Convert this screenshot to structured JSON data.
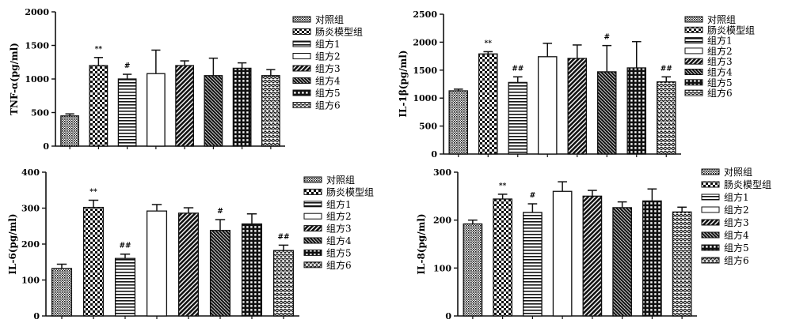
{
  "chart_data": [
    {
      "type": "bar",
      "ylabel": "TNF-α(pg/ml)",
      "ylim": [
        0,
        2000
      ],
      "yticks": [
        0,
        500,
        1000,
        1500,
        2000
      ],
      "tick_labels": [
        "0",
        "500",
        "1000",
        "1500",
        "2000"
      ],
      "categories": [
        "对照组",
        "肠炎模型组",
        "组方1",
        "组方2",
        "组方3",
        "组方4",
        "组方5",
        "组方6"
      ],
      "values": [
        450,
        1200,
        1000,
        1080,
        1200,
        1050,
        1160,
        1050
      ],
      "errors": [
        30,
        120,
        70,
        350,
        70,
        260,
        80,
        90
      ],
      "significance": [
        "",
        "**",
        "#",
        "",
        "",
        "",
        "",
        ""
      ],
      "legend": [
        "对照组",
        "肠炎模型组",
        "组方1",
        "组方2",
        "组方3",
        "组方4",
        "组方5",
        "组方6"
      ]
    },
    {
      "type": "bar",
      "ylabel": "IL-1β(pg/ml)",
      "ylim": [
        0,
        2500
      ],
      "yticks": [
        0,
        500,
        1000,
        1500,
        2000,
        2500
      ],
      "tick_labels": [
        "0",
        "500",
        "1000",
        "1500",
        "2000",
        "2500"
      ],
      "categories": [
        "对照组",
        "肠炎模型组",
        "组方1",
        "组方2",
        "组方3",
        "组方4",
        "组方5",
        "组方6"
      ],
      "values": [
        1130,
        1790,
        1280,
        1740,
        1710,
        1470,
        1540,
        1290
      ],
      "errors": [
        30,
        40,
        100,
        240,
        240,
        470,
        470,
        90
      ],
      "significance": [
        "",
        "**",
        "##",
        "",
        "",
        "#",
        "",
        "##"
      ],
      "legend": [
        "对照组",
        "肠炎模型组",
        "组方1",
        "组方2",
        "组方3",
        "组方4",
        "组方5",
        "组方6"
      ]
    },
    {
      "type": "bar",
      "ylabel": "IL-6(pg/ml)",
      "ylim": [
        0,
        400
      ],
      "yticks": [
        0,
        100,
        200,
        300,
        400
      ],
      "tick_labels": [
        "0",
        "100",
        "200",
        "300",
        "400"
      ],
      "categories": [
        "对照组",
        "肠炎模型组",
        "组方1",
        "组方2",
        "组方3",
        "组方4",
        "组方5",
        "组方6"
      ],
      "values": [
        132,
        302,
        160,
        292,
        286,
        238,
        256,
        182
      ],
      "errors": [
        12,
        20,
        12,
        18,
        15,
        30,
        28,
        15
      ],
      "significance": [
        "",
        "**",
        "##",
        "",
        "",
        "#",
        "",
        "##"
      ],
      "legend": [
        "对照组",
        "肠炎模型组",
        "组方1",
        "组方2",
        "组方3",
        "组方4",
        "组方5",
        "组方6"
      ]
    },
    {
      "type": "bar",
      "ylabel": "IL-8(pg/ml)",
      "ylim": [
        0,
        300
      ],
      "yticks": [
        0,
        100,
        200,
        300
      ],
      "tick_labels": [
        "0",
        "100",
        "200",
        "300"
      ],
      "categories": [
        "对照组",
        "肠炎模型组",
        "组方1",
        "组方2",
        "组方3",
        "组方4",
        "组方5",
        "组方6"
      ],
      "values": [
        192,
        244,
        216,
        260,
        250,
        226,
        240,
        217
      ],
      "errors": [
        8,
        10,
        18,
        20,
        12,
        12,
        25,
        10
      ],
      "significance": [
        "",
        "**",
        "#",
        "",
        "",
        "",
        "",
        ""
      ],
      "legend": [
        "对照组",
        "肠炎模型组",
        "组方1",
        "组方2",
        "组方3",
        "组方4",
        "组方5",
        "组方6"
      ]
    }
  ],
  "colors": {
    "ink": "#111111",
    "paper": "#ffffff"
  }
}
